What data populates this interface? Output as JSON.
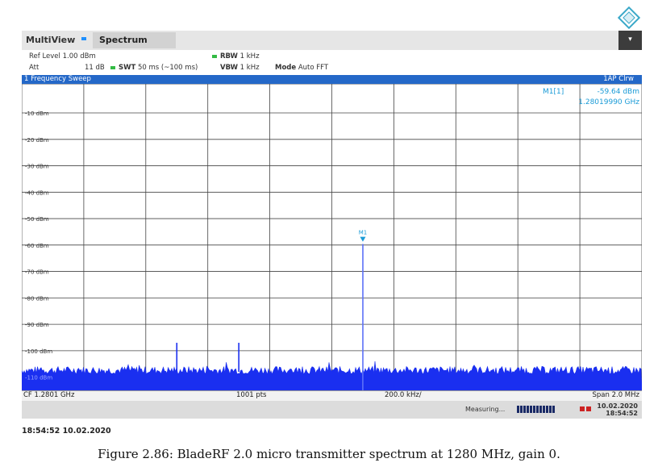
{
  "tabs": {
    "multiview": "MultiView",
    "spectrum": "Spectrum",
    "menu_glyph": "▾"
  },
  "settings": {
    "ref_level_label": "Ref Level",
    "ref_level_value": "1.00 dBm",
    "att_label": "Att",
    "att_value": "11 dB",
    "swt_label": "SWT",
    "swt_value": "50 ms (~100 ms)",
    "rbw_label": "RBW",
    "rbw_value": "1 kHz",
    "vbw_label": "VBW",
    "vbw_value": "1 kHz",
    "mode_label": "Mode",
    "mode_value": "Auto FFT"
  },
  "sweep": {
    "title": "1 Frequency Sweep",
    "trace_mode": "1AP Clrw"
  },
  "marker": {
    "label": "M1[1]",
    "level": "-59.64 dBm",
    "frequency": "1.28019990 GHz",
    "tag": "M1"
  },
  "footer": {
    "cf": "CF 1.2801 GHz",
    "points": "1001 pts",
    "div": "200.0 kHz/",
    "span": "Span 2.0 MHz"
  },
  "status": {
    "measuring": "Measuring...",
    "date": "10.02.2020",
    "time": "18:54:52"
  },
  "timestamp": "18:54:52  10.02.2020",
  "caption": "Figure 2.86: BladeRF 2.0 micro transmitter spectrum at 1280 MHz, gain 0.",
  "colors": {
    "trace": "#1a2ff0",
    "accent": "#2468c8",
    "marker_text": "#1a9bd7"
  },
  "chart_data": {
    "type": "line",
    "ylabel": "",
    "y_ticks": [
      "-10 dBm",
      "-20 dBm",
      "-30 dBm",
      "-40 dBm",
      "-50 dBm",
      "-60 dBm",
      "-70 dBm",
      "-80 dBm",
      "-90 dBm",
      "-100 dBm",
      "-110 dBm"
    ],
    "ylim": [
      -115,
      1
    ],
    "xlim_mhz": [
      1279.1,
      1281.1
    ],
    "grid": true,
    "noise_floor_dbm": -108,
    "series": [
      {
        "x_mhz": [
          1279.1,
          1279.5,
          1279.8,
          1280.2,
          1280.5,
          1280.8,
          1281.1
        ],
        "y_dbm": [
          -108,
          -108,
          -108,
          -108,
          -108,
          -108,
          -108
        ]
      }
    ],
    "peaks": [
      {
        "x_mhz": 1279.6,
        "y_dbm": -97
      },
      {
        "x_mhz": 1279.8,
        "y_dbm": -97
      },
      {
        "x_mhz": 1280.2,
        "y_dbm": -59.64
      }
    ]
  }
}
